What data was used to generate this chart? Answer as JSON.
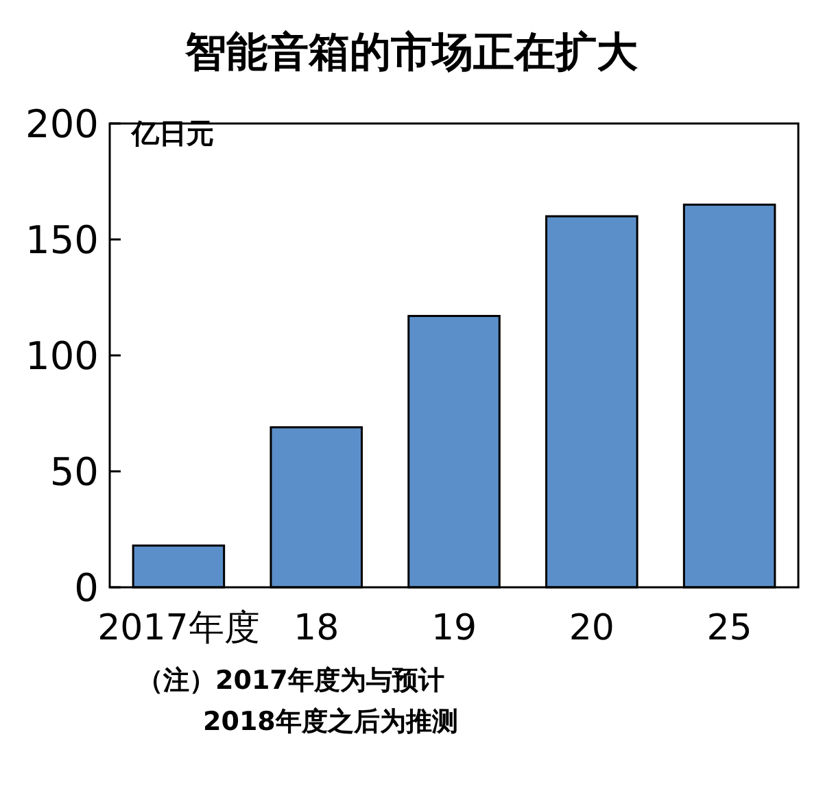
{
  "chart_data": {
    "type": "bar",
    "title": "智能音箱的市场正在扩大",
    "ylabel": "亿日元",
    "categories": [
      "2017年度",
      "18",
      "19",
      "20",
      "25"
    ],
    "values": [
      18,
      69,
      117,
      160,
      165
    ],
    "color": "#5b8fc9",
    "ylim": [
      0,
      200
    ],
    "yticks": [
      0,
      50,
      100,
      150,
      200
    ],
    "grid": false,
    "annotations": [
      "（注）2017年度为与预计",
      "2018年度之后为推测"
    ]
  }
}
